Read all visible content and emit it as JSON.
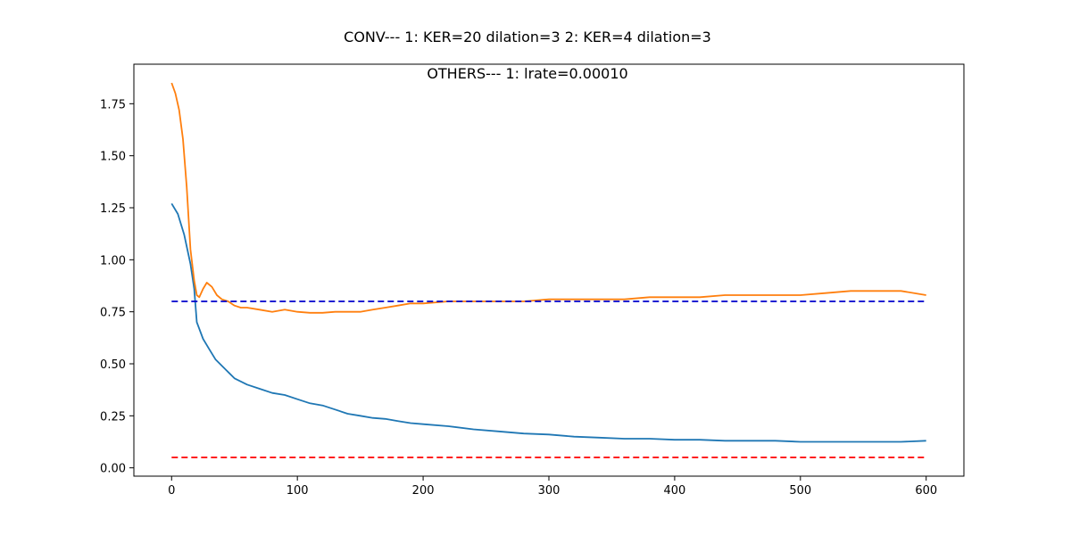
{
  "chart_data": {
    "type": "line",
    "title": "CONV--- 1: KER=20   dilation=3   2: KER=4   dilation=3",
    "subtitle": "OTHERS--- 1: lrate=0.00010",
    "xlabel": "",
    "ylabel": "",
    "xlim": [
      -30,
      630
    ],
    "ylim": [
      -0.04,
      1.94
    ],
    "xticks": [
      0,
      100,
      200,
      300,
      400,
      500,
      600
    ],
    "yticks": [
      0.0,
      0.25,
      0.5,
      0.75,
      1.0,
      1.25,
      1.5,
      1.75
    ],
    "grid": false,
    "series": [
      {
        "color": "#1f77b4",
        "x": [
          0,
          5,
          10,
          15,
          18,
          20,
          25,
          30,
          35,
          40,
          45,
          50,
          60,
          70,
          80,
          90,
          100,
          110,
          120,
          130,
          140,
          150,
          160,
          170,
          180,
          190,
          200,
          220,
          240,
          260,
          280,
          300,
          320,
          340,
          360,
          380,
          400,
          420,
          440,
          460,
          480,
          500,
          520,
          540,
          560,
          580,
          600
        ],
        "y": [
          1.27,
          1.22,
          1.12,
          0.98,
          0.86,
          0.7,
          0.62,
          0.57,
          0.52,
          0.49,
          0.46,
          0.43,
          0.4,
          0.38,
          0.36,
          0.35,
          0.33,
          0.31,
          0.3,
          0.28,
          0.26,
          0.25,
          0.24,
          0.235,
          0.225,
          0.215,
          0.21,
          0.2,
          0.185,
          0.175,
          0.165,
          0.16,
          0.15,
          0.145,
          0.14,
          0.14,
          0.135,
          0.135,
          0.13,
          0.13,
          0.13,
          0.125,
          0.125,
          0.125,
          0.125,
          0.125,
          0.13
        ]
      },
      {
        "color": "#ff7f0e",
        "x": [
          0,
          3,
          6,
          9,
          12,
          15,
          18,
          20,
          22,
          25,
          28,
          32,
          36,
          40,
          45,
          50,
          55,
          60,
          70,
          80,
          90,
          100,
          110,
          120,
          130,
          140,
          150,
          160,
          170,
          180,
          190,
          200,
          220,
          240,
          260,
          280,
          300,
          320,
          340,
          360,
          380,
          400,
          420,
          440,
          460,
          480,
          500,
          520,
          540,
          560,
          580,
          600
        ],
        "y": [
          1.85,
          1.8,
          1.72,
          1.58,
          1.35,
          1.05,
          0.9,
          0.83,
          0.82,
          0.86,
          0.89,
          0.87,
          0.83,
          0.81,
          0.8,
          0.78,
          0.77,
          0.77,
          0.76,
          0.75,
          0.76,
          0.75,
          0.745,
          0.745,
          0.75,
          0.75,
          0.75,
          0.76,
          0.77,
          0.78,
          0.79,
          0.79,
          0.8,
          0.8,
          0.8,
          0.8,
          0.81,
          0.81,
          0.81,
          0.81,
          0.82,
          0.82,
          0.82,
          0.83,
          0.83,
          0.83,
          0.83,
          0.84,
          0.85,
          0.85,
          0.85,
          0.83
        ]
      },
      {
        "color": "#0000cc",
        "dashed": true,
        "x": [
          0,
          600
        ],
        "y": [
          0.8,
          0.8
        ]
      },
      {
        "color": "#ff0000",
        "dashed": true,
        "x": [
          0,
          600
        ],
        "y": [
          0.05,
          0.05
        ]
      }
    ]
  }
}
